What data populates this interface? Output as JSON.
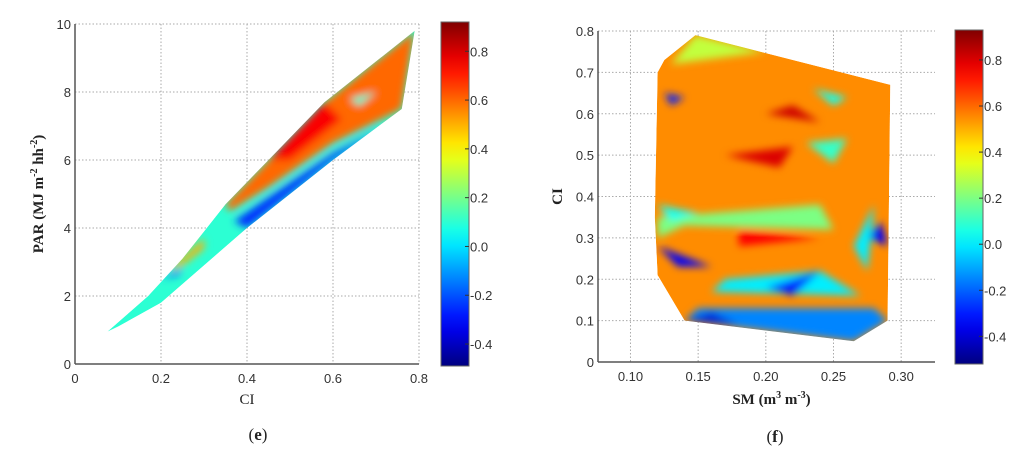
{
  "chart_data": [
    {
      "panel_label": "(e)",
      "panel_letter": "e",
      "type": "heatmap",
      "xlabel": "CI",
      "ylabel": "PAR (MJ m-2 hh-2)",
      "ylabel_parts": {
        "main": "PAR (MJ m",
        "sup1": "-2",
        "mid": " hh",
        "sup2": "-2",
        "end": ")"
      },
      "xlim": [
        0,
        0.8
      ],
      "ylim": [
        0,
        10
      ],
      "xticks": [
        "0",
        "0.2",
        "0.4",
        "0.6",
        "0.8"
      ],
      "yticks": [
        "0",
        "2",
        "4",
        "6",
        "8",
        "10"
      ],
      "grid": true,
      "colormap": "jet",
      "colorbar": {
        "range": [
          -0.49,
          0.92
        ],
        "ticks": [
          "-0.4",
          "-0.2",
          "0.0",
          "0.2",
          "0.4",
          "0.6",
          "0.8"
        ]
      },
      "surface_hull": [
        [
          0.075,
          0.95
        ],
        [
          0.17,
          2.0
        ],
        [
          0.25,
          3.1
        ],
        [
          0.35,
          4.7
        ],
        [
          0.45,
          6.0
        ],
        [
          0.58,
          7.7
        ],
        [
          0.7,
          8.9
        ],
        [
          0.79,
          9.8
        ],
        [
          0.76,
          7.5
        ],
        [
          0.6,
          6.0
        ],
        [
          0.4,
          4.0
        ],
        [
          0.2,
          1.8
        ],
        [
          0.1,
          1.1
        ]
      ],
      "base_value": 0.1,
      "patches": [
        {
          "value": 0.6,
          "points": [
            [
              0.35,
              4.7
            ],
            [
              0.45,
              6.0
            ],
            [
              0.58,
              7.7
            ],
            [
              0.7,
              8.9
            ],
            [
              0.79,
              9.8
            ],
            [
              0.76,
              7.5
            ],
            [
              0.6,
              6.5
            ],
            [
              0.45,
              5.2
            ],
            [
              0.36,
              4.5
            ]
          ]
        },
        {
          "value": 0.75,
          "points": [
            [
              0.45,
              6.0
            ],
            [
              0.58,
              7.7
            ],
            [
              0.62,
              7.2
            ],
            [
              0.5,
              6.0
            ]
          ]
        },
        {
          "value": -0.25,
          "points": [
            [
              0.37,
              4.2
            ],
            [
              0.6,
              6.2
            ],
            [
              0.72,
              7.0
            ],
            [
              0.6,
              6.0
            ],
            [
              0.4,
              4.0
            ]
          ]
        },
        {
          "value": 0.5,
          "points": [
            [
              0.22,
              2.8
            ],
            [
              0.3,
              3.7
            ],
            [
              0.3,
              3.4
            ],
            [
              0.24,
              2.8
            ]
          ]
        },
        {
          "value": -0.2,
          "points": [
            [
              0.2,
              2.5
            ],
            [
              0.25,
              2.8
            ],
            [
              0.24,
              2.6
            ]
          ]
        },
        {
          "value": 0.1,
          "points": [
            [
              0.64,
              7.8
            ],
            [
              0.7,
              8.0
            ],
            [
              0.66,
              7.6
            ]
          ]
        }
      ]
    },
    {
      "panel_label": "(f)",
      "panel_letter": "f",
      "type": "heatmap",
      "xlabel": "SM (m3 m-3)",
      "xlabel_parts": {
        "main": "SM (m",
        "sup1": "3",
        "mid": " m",
        "sup2": "-3",
        "end": ")"
      },
      "ylabel": "CI",
      "xlim": [
        0.076,
        0.325
      ],
      "ylim": [
        0,
        0.8
      ],
      "xticks": [
        "0.10",
        "0.15",
        "0.20",
        "0.25",
        "0.30"
      ],
      "yticks": [
        "0",
        "0.1",
        "0.2",
        "0.3",
        "0.4",
        "0.5",
        "0.6",
        "0.7",
        "0.8"
      ],
      "grid": true,
      "colormap": "jet",
      "colorbar": {
        "range": [
          -0.52,
          0.93
        ],
        "ticks": [
          "-0.4",
          "-0.2",
          "0.0",
          "0.2",
          "0.4",
          "0.6",
          "0.8"
        ]
      },
      "surface_hull": [
        [
          0.148,
          0.79
        ],
        [
          0.125,
          0.73
        ],
        [
          0.12,
          0.7
        ],
        [
          0.118,
          0.35
        ],
        [
          0.12,
          0.21
        ],
        [
          0.14,
          0.1
        ],
        [
          0.265,
          0.05
        ],
        [
          0.29,
          0.1
        ],
        [
          0.292,
          0.67
        ]
      ],
      "base_value": 0.55,
      "patches": [
        {
          "value": -0.15,
          "points": [
            [
              0.14,
              0.1
            ],
            [
              0.265,
              0.05
            ],
            [
              0.29,
              0.1
            ],
            [
              0.28,
              0.13
            ],
            [
              0.15,
              0.13
            ]
          ]
        },
        {
          "value": -0.4,
          "points": [
            [
              0.14,
              0.1
            ],
            [
              0.18,
              0.09
            ],
            [
              0.16,
              0.12
            ]
          ]
        },
        {
          "value": -0.35,
          "points": [
            [
              0.12,
              0.28
            ],
            [
              0.16,
              0.23
            ],
            [
              0.135,
              0.23
            ]
          ]
        },
        {
          "value": 0.0,
          "points": [
            [
              0.16,
              0.17
            ],
            [
              0.27,
              0.16
            ],
            [
              0.24,
              0.22
            ],
            [
              0.17,
              0.2
            ]
          ]
        },
        {
          "value": -0.3,
          "points": [
            [
              0.2,
              0.18
            ],
            [
              0.24,
              0.22
            ],
            [
              0.22,
              0.16
            ]
          ]
        },
        {
          "value": 0.2,
          "points": [
            [
              0.12,
              0.35
            ],
            [
              0.24,
              0.38
            ],
            [
              0.25,
              0.32
            ],
            [
              0.14,
              0.33
            ],
            [
              0.12,
              0.3
            ]
          ]
        },
        {
          "value": 0.05,
          "points": [
            [
              0.12,
              0.38
            ],
            [
              0.15,
              0.36
            ],
            [
              0.13,
              0.34
            ]
          ]
        },
        {
          "value": 0.8,
          "points": [
            [
              0.17,
              0.5
            ],
            [
              0.22,
              0.52
            ],
            [
              0.21,
              0.47
            ]
          ]
        },
        {
          "value": 0.82,
          "points": [
            [
              0.2,
              0.6
            ],
            [
              0.24,
              0.58
            ],
            [
              0.22,
              0.62
            ]
          ]
        },
        {
          "value": 0.1,
          "points": [
            [
              0.23,
              0.53
            ],
            [
              0.25,
              0.48
            ],
            [
              0.26,
              0.54
            ]
          ]
        },
        {
          "value": 0.05,
          "points": [
            [
              0.235,
              0.66
            ],
            [
              0.26,
              0.64
            ],
            [
              0.25,
              0.62
            ]
          ]
        },
        {
          "value": -0.35,
          "points": [
            [
              0.275,
              0.3
            ],
            [
              0.285,
              0.34
            ],
            [
              0.29,
              0.28
            ]
          ]
        },
        {
          "value": 0.0,
          "points": [
            [
              0.265,
              0.28
            ],
            [
              0.28,
              0.38
            ],
            [
              0.275,
              0.22
            ]
          ]
        },
        {
          "value": -0.3,
          "points": [
            [
              0.125,
              0.65
            ],
            [
              0.14,
              0.64
            ],
            [
              0.13,
              0.62
            ]
          ]
        },
        {
          "value": 0.75,
          "points": [
            [
              0.18,
              0.32
            ],
            [
              0.24,
              0.3
            ],
            [
              0.18,
              0.28
            ]
          ]
        },
        {
          "value": 0.3,
          "points": [
            [
              0.148,
              0.79
            ],
            [
              0.2,
              0.75
            ],
            [
              0.13,
              0.72
            ]
          ]
        }
      ]
    }
  ]
}
